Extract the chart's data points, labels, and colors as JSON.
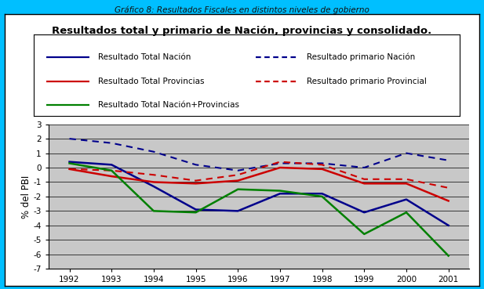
{
  "title": "Resultados total y primario de Nación, provincias y consolidado.",
  "suptitle": "Gráfico 8: Resultados Fiscales en distintos niveles de gobierno",
  "ylabel": "% del PBI",
  "years": [
    1992,
    1993,
    1994,
    1995,
    1996,
    1997,
    1998,
    1999,
    2000,
    2001
  ],
  "resultado_total_nacion": [
    0.4,
    0.2,
    -1.3,
    -2.9,
    -3.0,
    -1.8,
    -1.8,
    -3.1,
    -2.2,
    -4.0
  ],
  "resultado_primario_nacion": [
    2.0,
    1.7,
    1.1,
    0.2,
    -0.2,
    0.3,
    0.3,
    0.0,
    1.0,
    0.5
  ],
  "resultado_total_provincias": [
    -0.1,
    -0.6,
    -1.0,
    -1.1,
    -0.9,
    0.0,
    -0.1,
    -1.1,
    -1.1,
    -2.3
  ],
  "resultado_primario_provincial": [
    -0.1,
    -0.2,
    -0.5,
    -0.9,
    -0.5,
    0.4,
    0.2,
    -0.8,
    -0.8,
    -1.4
  ],
  "resultado_total_nacion_prov": [
    0.3,
    -0.2,
    -3.0,
    -3.1,
    -1.5,
    -1.6,
    -2.0,
    -4.6,
    -3.1,
    -6.1
  ],
  "color_nacion": "#00008B",
  "color_provincias": "#CC0000",
  "color_consolidado": "#008000",
  "ylim": [
    -7,
    3
  ],
  "yticks": [
    -7,
    -6,
    -5,
    -4,
    -3,
    -2,
    -1,
    0,
    1,
    2,
    3
  ],
  "chart_bg": "#C8C8C8",
  "outer_bg": "#00BFFF",
  "inner_bg": "#FFFFFF"
}
